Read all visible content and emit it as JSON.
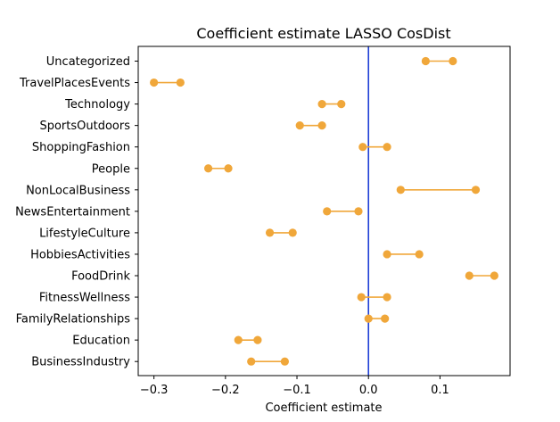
{
  "chart_data": {
    "type": "dumbbell",
    "title": "Coefficient estimate LASSO  CosDist",
    "xlabel": "Coefficient estimate",
    "ylabel": "",
    "xlim": [
      -0.322,
      0.198
    ],
    "xticks": [
      {
        "value": -0.3,
        "label": "−0.3"
      },
      {
        "value": -0.2,
        "label": "−0.2"
      },
      {
        "value": -0.1,
        "label": "−0.1"
      },
      {
        "value": 0.0,
        "label": "0.0"
      },
      {
        "value": 0.1,
        "label": "0.1"
      }
    ],
    "reference_line": {
      "x": 0.0,
      "color": "#1f3fd6"
    },
    "marker_color": "#f0a73a",
    "grid": false,
    "categories": [
      {
        "label": "Uncategorized",
        "low": 0.08,
        "high": 0.118
      },
      {
        "label": "TravelPlacesEvents",
        "low": -0.3,
        "high": -0.263
      },
      {
        "label": "Technology",
        "low": -0.065,
        "high": -0.038
      },
      {
        "label": "SportsOutdoors",
        "low": -0.096,
        "high": -0.065
      },
      {
        "label": "ShoppingFashion",
        "low": -0.008,
        "high": 0.026
      },
      {
        "label": "People",
        "low": -0.224,
        "high": -0.196
      },
      {
        "label": "NonLocalBusiness",
        "low": 0.045,
        "high": 0.15
      },
      {
        "label": "NewsEntertainment",
        "low": -0.058,
        "high": -0.014
      },
      {
        "label": "LifestyleCulture",
        "low": -0.138,
        "high": -0.106
      },
      {
        "label": "HobbiesActivities",
        "low": 0.026,
        "high": 0.071
      },
      {
        "label": "FoodDrink",
        "low": 0.141,
        "high": 0.176
      },
      {
        "label": "FitnessWellness",
        "low": -0.01,
        "high": 0.026
      },
      {
        "label": "FamilyRelationships",
        "low": 0.0,
        "high": 0.023
      },
      {
        "label": "Education",
        "low": -0.182,
        "high": -0.155
      },
      {
        "label": "BusinessIndustry",
        "low": -0.164,
        "high": -0.117
      }
    ]
  }
}
